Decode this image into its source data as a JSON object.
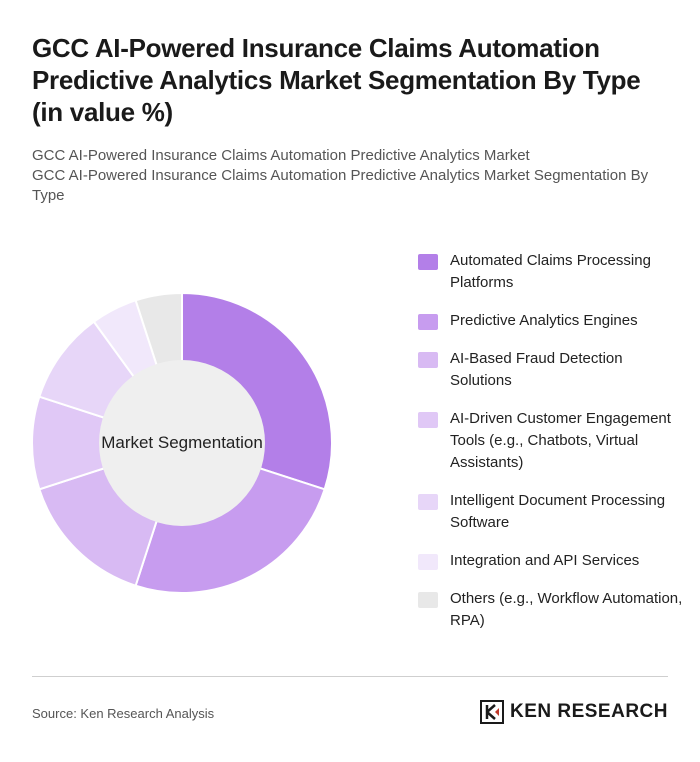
{
  "header": {
    "title": "GCC AI-Powered Insurance Claims Automation Predictive Analytics Market Segmentation By Type (in value %)",
    "subtitle_line1": "GCC AI-Powered Insurance Claims Automation Predictive Analytics Market",
    "subtitle_line2": "GCC AI-Powered Insurance Claims Automation Predictive Analytics Market Segmentation By Type"
  },
  "chart_data": {
    "type": "pie",
    "variant": "donut",
    "center_label": "Market Segmentation",
    "categories": [
      "Automated Claims Processing Platforms",
      "Predictive Analytics Engines",
      "AI-Based Fraud Detection Solutions",
      "AI-Driven Customer Engagement Tools (e.g., Chatbots, Virtual Assistants)",
      "Intelligent Document Processing Software",
      "Integration and API Services",
      "Others (e.g., Workflow Automation, RPA)"
    ],
    "values": [
      30,
      25,
      15,
      10,
      10,
      5,
      5
    ],
    "colors": [
      "#b37fe8",
      "#c79cef",
      "#d8baf3",
      "#e0c8f6",
      "#e7d6f8",
      "#f1e8fb",
      "#e8e8e8"
    ],
    "legend_position": "right"
  },
  "footer": {
    "source": "Source: Ken Research Analysis",
    "brand": "KEN RESEARCH",
    "brand_icon": "ken-research-logo-icon"
  }
}
